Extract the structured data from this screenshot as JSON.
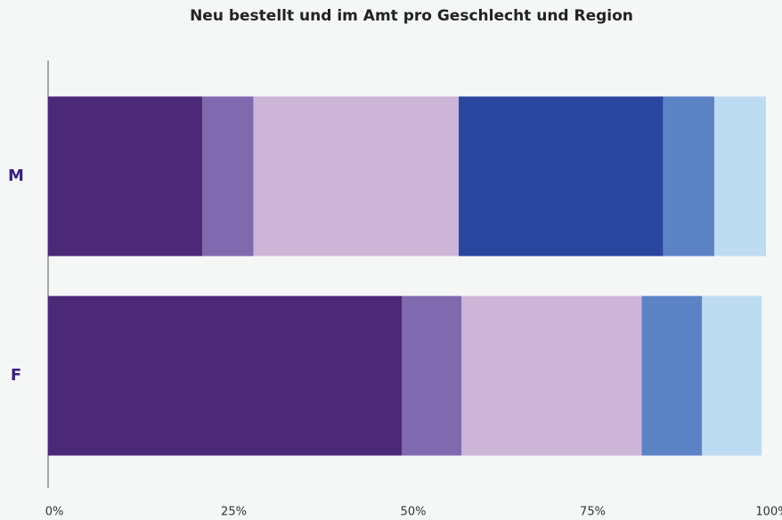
{
  "chart_data": {
    "type": "stacked_barh",
    "title": "Neu bestellt und im Amt pro Geschlecht und Region",
    "categories": [
      "M",
      "F"
    ],
    "series": [
      {
        "color": "#4b2878",
        "values": [
          21.5,
          49.3
        ]
      },
      {
        "color": "#8069ae",
        "values": [
          7.1,
          8.3
        ]
      },
      {
        "color": "#cdb5d8",
        "values": [
          28.6,
          25.1
        ]
      },
      {
        "color": "#2a47a0",
        "values": [
          28.5,
          0
        ]
      },
      {
        "color": "#5b83c6",
        "values": [
          7.1,
          8.4
        ]
      },
      {
        "color": "#bddcf2",
        "values": [
          7.2,
          8.3
        ]
      }
    ],
    "xlim": [
      0,
      100
    ],
    "xticks": [
      {
        "value": 0,
        "label": "0%"
      },
      {
        "value": 25,
        "label": "25%"
      },
      {
        "value": 50,
        "label": "50%"
      },
      {
        "value": 75,
        "label": "75%"
      },
      {
        "value": 100,
        "label": "100%"
      }
    ],
    "grid": false
  }
}
